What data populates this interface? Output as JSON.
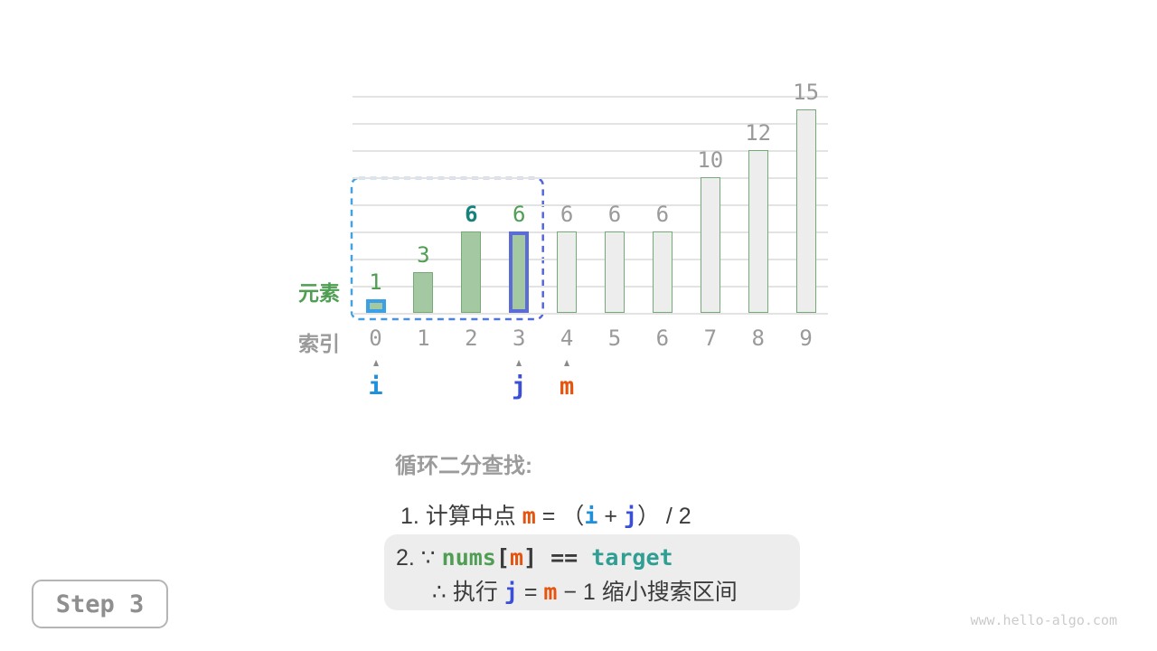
{
  "page": {
    "step_label": "Step 3",
    "watermark": "www.hello-algo.com"
  },
  "colors": {
    "green_fill": "#a4c8a1",
    "green_border": "#75aa78",
    "gray_fill": "#ededed",
    "sky_highlight": "#3ba0e4",
    "indigo_highlight": "#5b6cd6",
    "orange": "#e6530d",
    "teal": "#2f9e93",
    "label_green": "#4f9e53",
    "label_teal": "#15837c",
    "label_gray": "#9a9a9a",
    "text_dark": "#3b3b3b",
    "heading_gray": "#9b9b9b",
    "gridline": "#e3e3e3",
    "range_gradient_left": "#45a2e0",
    "range_gradient_right": "#5566d8"
  },
  "chart_data": {
    "type": "bar",
    "categories": [
      "0",
      "1",
      "2",
      "3",
      "4",
      "5",
      "6",
      "7",
      "8",
      "9"
    ],
    "values": [
      1,
      3,
      6,
      6,
      6,
      6,
      6,
      10,
      12,
      15
    ],
    "title": "",
    "xlabel": "索引",
    "ylabel": "元素",
    "ylim": [
      0,
      16
    ],
    "grid": "on",
    "grid_step": 2,
    "bar_styles": [
      {
        "fill": "green",
        "border": "sky",
        "value_color": "green"
      },
      {
        "fill": "green",
        "border": "green",
        "value_color": "green"
      },
      {
        "fill": "green",
        "border": "green",
        "value_color": "teal"
      },
      {
        "fill": "green",
        "border": "indigo",
        "value_color": "green"
      },
      {
        "fill": "gray",
        "border": "green",
        "value_color": "gray"
      },
      {
        "fill": "gray",
        "border": "green",
        "value_color": "gray"
      },
      {
        "fill": "gray",
        "border": "green",
        "value_color": "gray"
      },
      {
        "fill": "gray",
        "border": "green",
        "value_color": "gray"
      },
      {
        "fill": "gray",
        "border": "green",
        "value_color": "gray"
      },
      {
        "fill": "gray",
        "border": "green",
        "value_color": "gray"
      }
    ],
    "pointers": [
      {
        "label": "i",
        "index": 0,
        "color": "#1e90dc"
      },
      {
        "label": "j",
        "index": 3,
        "color": "#3a4ed8"
      },
      {
        "label": "m",
        "index": 4,
        "color": "#e6530d"
      }
    ],
    "search_range": {
      "from_index": 0,
      "to_index": 3
    }
  },
  "explanation": {
    "heading": "循环二分查找:",
    "lines": [
      {
        "tokens": [
          {
            "t": "1. 计算中点 ",
            "s": "dark"
          },
          {
            "t": "m",
            "s": "orange"
          },
          {
            "t": " = ",
            "s": "dark"
          },
          {
            "t": "（",
            "s": "dark"
          },
          {
            "t": "i",
            "s": "sky"
          },
          {
            "t": " + ",
            "s": "dark"
          },
          {
            "t": "j",
            "s": "indigo"
          },
          {
            "t": "） / 2",
            "s": "dark"
          }
        ]
      }
    ],
    "box_lines": [
      {
        "indent": 0,
        "tokens": [
          {
            "t": "2. ",
            "s": "dark"
          },
          {
            "t": "∵ ",
            "s": "dark"
          },
          {
            "t": "nums",
            "s": "green"
          },
          {
            "t": "[",
            "s": "mono"
          },
          {
            "t": "m",
            "s": "orange"
          },
          {
            "t": "]",
            "s": "mono"
          },
          {
            "t": " == ",
            "s": "mono"
          },
          {
            "t": "target",
            "s": "teal"
          }
        ]
      },
      {
        "indent": 40,
        "tokens": [
          {
            "t": "∴ 执行 ",
            "s": "dark"
          },
          {
            "t": "j",
            "s": "indigo"
          },
          {
            "t": " = ",
            "s": "dark"
          },
          {
            "t": "m",
            "s": "orange"
          },
          {
            "t": " − 1 缩小搜索区间",
            "s": "dark"
          }
        ]
      }
    ]
  }
}
